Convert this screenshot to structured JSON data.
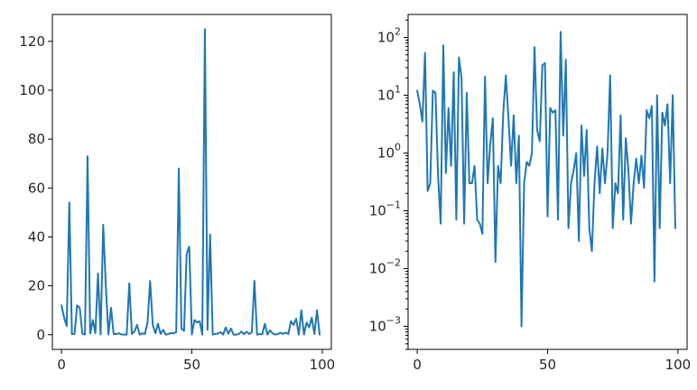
{
  "chart_data": [
    {
      "type": "line",
      "yscale": "linear",
      "xlim": [
        -3.5,
        103.5
      ],
      "ylim": [
        -6,
        131
      ],
      "grid": false,
      "xticks": [
        0,
        50,
        100
      ],
      "yticks": [
        0,
        20,
        40,
        60,
        80,
        100,
        120
      ],
      "x_tick_labels": [
        "0",
        "50",
        "100"
      ],
      "y_tick_labels": [
        "0",
        "20",
        "40",
        "60",
        "80",
        "100",
        "120"
      ],
      "series": [
        {
          "color": "#1f77b4",
          "x": [
            0,
            1,
            2,
            3,
            4,
            5,
            6,
            7,
            8,
            9,
            10,
            11,
            12,
            13,
            14,
            15,
            16,
            17,
            18,
            19,
            20,
            21,
            22,
            23,
            24,
            25,
            26,
            27,
            28,
            29,
            30,
            31,
            32,
            33,
            34,
            35,
            36,
            37,
            38,
            39,
            40,
            41,
            42,
            43,
            44,
            45,
            46,
            47,
            48,
            49,
            50,
            51,
            52,
            53,
            54,
            55,
            56,
            57,
            58,
            59,
            60,
            61,
            62,
            63,
            64,
            65,
            66,
            67,
            68,
            69,
            70,
            71,
            72,
            73,
            74,
            75,
            76,
            77,
            78,
            79,
            80,
            81,
            82,
            83,
            84,
            85,
            86,
            87,
            88,
            89,
            90,
            91,
            92,
            93,
            94,
            95,
            96,
            97,
            98,
            99
          ],
          "values": [
            12,
            7,
            3.5,
            54,
            0.22,
            0.3,
            12,
            11,
            0.4,
            0.06,
            73,
            0.45,
            6,
            0.6,
            25,
            0.07,
            45,
            20,
            0.06,
            11,
            0.3,
            0.3,
            0.6,
            0.07,
            0.06,
            0.04,
            21,
            0.3,
            1.4,
            4,
            0.013,
            0.6,
            0.3,
            5,
            22,
            4,
            0.6,
            4.5,
            0.3,
            2,
            0.001,
            0.3,
            0.7,
            0.6,
            1,
            68,
            2.5,
            1.6,
            33,
            36,
            0.08,
            6,
            5,
            5.5,
            0.07,
            125,
            2,
            41,
            0.05,
            0.3,
            0.5,
            1,
            0.03,
            3,
            0.4,
            2.5,
            0.05,
            0.02,
            0.3,
            1.3,
            0.2,
            1.2,
            0.3,
            1,
            22,
            0.05,
            0.3,
            0.2,
            4.5,
            0.07,
            1.8,
            0.5,
            0.06,
            0.3,
            0.8,
            0.3,
            0.9,
            0.25,
            5.5,
            4,
            6.5,
            0.006,
            10,
            0.05,
            5,
            3,
            7,
            0.3,
            10,
            0.05
          ]
        }
      ]
    },
    {
      "type": "line",
      "yscale": "log",
      "xlim": [
        -3.5,
        103.5
      ],
      "ylim": [
        0.0004,
        250
      ],
      "grid": false,
      "xticks": [
        0,
        50,
        100
      ],
      "yticks": [
        0.001,
        0.01,
        0.1,
        1,
        10,
        100
      ],
      "x_tick_labels": [
        "0",
        "50",
        "100"
      ],
      "y_tick_labels": [
        {
          "base": "10",
          "exp": "−3"
        },
        {
          "base": "10",
          "exp": "−2"
        },
        {
          "base": "10",
          "exp": "−1"
        },
        {
          "base": "10",
          "exp": "0"
        },
        {
          "base": "10",
          "exp": "1"
        },
        {
          "base": "10",
          "exp": "2"
        }
      ],
      "series": [
        {
          "color": "#1f77b4",
          "x": [
            0,
            1,
            2,
            3,
            4,
            5,
            6,
            7,
            8,
            9,
            10,
            11,
            12,
            13,
            14,
            15,
            16,
            17,
            18,
            19,
            20,
            21,
            22,
            23,
            24,
            25,
            26,
            27,
            28,
            29,
            30,
            31,
            32,
            33,
            34,
            35,
            36,
            37,
            38,
            39,
            40,
            41,
            42,
            43,
            44,
            45,
            46,
            47,
            48,
            49,
            50,
            51,
            52,
            53,
            54,
            55,
            56,
            57,
            58,
            59,
            60,
            61,
            62,
            63,
            64,
            65,
            66,
            67,
            68,
            69,
            70,
            71,
            72,
            73,
            74,
            75,
            76,
            77,
            78,
            79,
            80,
            81,
            82,
            83,
            84,
            85,
            86,
            87,
            88,
            89,
            90,
            91,
            92,
            93,
            94,
            95,
            96,
            97,
            98,
            99
          ],
          "values": [
            12,
            7,
            3.5,
            54,
            0.22,
            0.3,
            12,
            11,
            0.4,
            0.06,
            73,
            0.45,
            6,
            0.6,
            25,
            0.07,
            45,
            20,
            0.06,
            11,
            0.3,
            0.3,
            0.6,
            0.07,
            0.06,
            0.04,
            21,
            0.3,
            1.4,
            4,
            0.013,
            0.6,
            0.3,
            5,
            22,
            4,
            0.6,
            4.5,
            0.3,
            2,
            0.001,
            0.3,
            0.7,
            0.6,
            1,
            68,
            2.5,
            1.6,
            33,
            36,
            0.08,
            6,
            5,
            5.5,
            0.07,
            125,
            2,
            41,
            0.05,
            0.3,
            0.5,
            1,
            0.03,
            3,
            0.4,
            2.5,
            0.05,
            0.02,
            0.3,
            1.3,
            0.2,
            1.2,
            0.3,
            1,
            22,
            0.05,
            0.3,
            0.2,
            4.5,
            0.07,
            1.8,
            0.5,
            0.06,
            0.3,
            0.8,
            0.3,
            0.9,
            0.25,
            5.5,
            4,
            6.5,
            0.006,
            10,
            0.05,
            5,
            3,
            7,
            0.3,
            10,
            0.05
          ]
        }
      ]
    }
  ]
}
